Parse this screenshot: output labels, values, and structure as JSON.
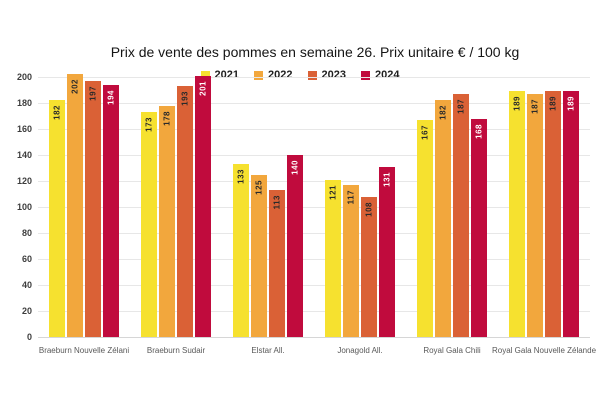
{
  "chart_data": {
    "type": "bar",
    "title": "Prix de vente des pommes en semaine 26. Prix unitaire € / 100 kg",
    "categories": [
      "Braeburn Nouvelle Zélani",
      "Braeburn Sudair",
      "Elstar All.",
      "Jonagold All.",
      "Royal Gala Chili",
      "Royal Gala Nouvelle Zélande"
    ],
    "series": [
      {
        "name": "2021",
        "color": "#f6e12f",
        "label_color": "#2a2a2a",
        "values": [
          182,
          173,
          133,
          121,
          167,
          189
        ]
      },
      {
        "name": "2022",
        "color": "#f2a73d",
        "label_color": "#2a2a2a",
        "values": [
          202,
          178,
          125,
          117,
          182,
          187
        ]
      },
      {
        "name": "2023",
        "color": "#da6136",
        "label_color": "#2a2a2a",
        "values": [
          197,
          193,
          113,
          108,
          187,
          189
        ]
      },
      {
        "name": "2024",
        "color": "#c00b3d",
        "label_color": "#ffffff",
        "values": [
          194,
          201,
          140,
          131,
          168,
          189
        ]
      }
    ],
    "ylim": [
      0,
      200
    ],
    "yticks": [
      0,
      20,
      40,
      60,
      80,
      100,
      120,
      140,
      160,
      180,
      200
    ],
    "grid": true,
    "legend_position": "top",
    "xlabel": "",
    "ylabel": ""
  }
}
